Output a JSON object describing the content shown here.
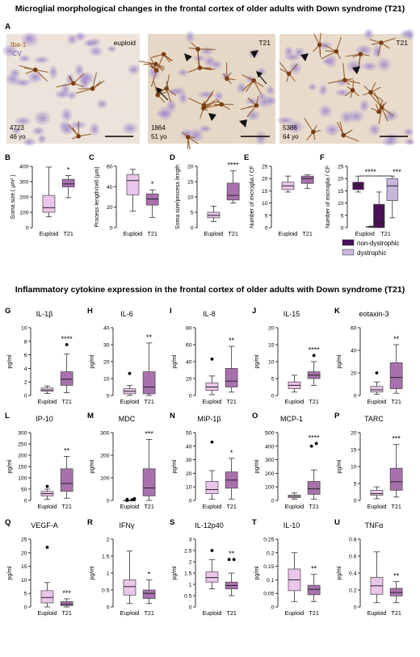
{
  "figure": {
    "title_top": "Microglial morphological changes in the frontal cortex of older adults with Down syndrome (T21)",
    "title_mid": "Inflammatory cytokine expression in the frontal cortex of older adults with Down syndrome (T21)",
    "legend": [
      {
        "label": "non-dystrophic",
        "color": "#4a1057"
      },
      {
        "label": "dystrophic",
        "color": "#c8b6dd"
      }
    ],
    "micrographs": {
      "panel": "A",
      "stain1": "Iba-1",
      "stain2": "CV",
      "images": [
        {
          "tag": "euploid",
          "case": "4723",
          "age": "46 yo"
        },
        {
          "tag": "T21",
          "case": "1864",
          "age": "51 yo"
        },
        {
          "tag": "T21",
          "case": "5386",
          "age": "64 yo"
        }
      ]
    }
  },
  "colors": {
    "euploid": "#ecc6ea",
    "t21": "#a871ad",
    "dark": "#4a1057",
    "light": "#c8b6dd"
  },
  "chart_data": [
    {
      "panel": "B",
      "type": "box",
      "ylabel": "Soma size ( µm² )",
      "categories": [
        "Euploid",
        "T21"
      ],
      "ylim": [
        0,
        400
      ],
      "yticks": [
        0,
        100,
        200,
        300,
        400
      ],
      "significance": "*",
      "boxes": [
        {
          "min": 70,
          "q1": 100,
          "median": 130,
          "q3": 210,
          "max": 395
        },
        {
          "min": 195,
          "q1": 265,
          "median": 285,
          "q3": 315,
          "max": 340
        }
      ]
    },
    {
      "panel": "C",
      "type": "box",
      "ylabel": "Process length/cell (µm)",
      "categories": [
        "Euploid",
        "T21"
      ],
      "ylim": [
        0,
        60
      ],
      "yticks": [
        0,
        20,
        40,
        60
      ],
      "significance": "*",
      "boxes": [
        {
          "min": 16,
          "q1": 32,
          "median": 46,
          "q3": 52,
          "max": 57
        },
        {
          "min": 10,
          "q1": 22,
          "median": 28,
          "q3": 33,
          "max": 37
        }
      ]
    },
    {
      "panel": "D",
      "type": "box",
      "ylabel": "Soma size/process length",
      "categories": [
        "Euploid",
        "T21"
      ],
      "ylim": [
        0,
        20
      ],
      "yticks": [
        0,
        5,
        10,
        15,
        20
      ],
      "significance": "****",
      "boxes": [
        {
          "min": 2,
          "q1": 3.2,
          "median": 4,
          "q3": 5,
          "max": 7
        },
        {
          "min": 8,
          "q1": 9,
          "median": 10.5,
          "q3": 14.5,
          "max": 18.5
        }
      ]
    },
    {
      "panel": "E",
      "type": "box",
      "ylabel": "Number of microglia / CF",
      "categories": [
        "Euploid",
        "T21"
      ],
      "ylim": [
        0,
        25
      ],
      "yticks": [
        0,
        5,
        10,
        15,
        20,
        25
      ],
      "significance": "",
      "boxes": [
        {
          "min": 14.5,
          "q1": 15.5,
          "median": 17,
          "q3": 18.5,
          "max": 21
        },
        {
          "min": 16,
          "q1": 18,
          "median": 20,
          "q3": 21,
          "max": 21.5
        }
      ]
    },
    {
      "panel": "F",
      "type": "box",
      "ylabel": "Number of microglia / CF",
      "categories": [
        "Euploid",
        "T21"
      ],
      "ylim": [
        0,
        25
      ],
      "yticks": [
        0,
        5,
        10,
        15,
        20,
        25
      ],
      "significance": [
        "****",
        "***"
      ],
      "boxes": [
        {
          "min": 14.5,
          "q1": 15.5,
          "median": 17.5,
          "q3": 18.5,
          "max": 21,
          "group": 0,
          "fill": "dark"
        },
        {
          "min": 0.1,
          "q1": 0.2,
          "median": 0.3,
          "q3": 0.4,
          "max": 0.6,
          "group": 0,
          "fill": "light"
        },
        {
          "min": 0,
          "q1": 0,
          "median": 2,
          "q3": 9.5,
          "max": 14.5,
          "group": 1,
          "fill": "dark"
        },
        {
          "min": 4,
          "q1": 11,
          "median": 17,
          "q3": 20,
          "max": 21,
          "group": 1,
          "fill": "light"
        }
      ]
    },
    {
      "panel": "G",
      "type": "box",
      "title": "IL-1β",
      "ylabel": "pg/ml",
      "categories": [
        "Euploid",
        "T21"
      ],
      "ylim": [
        0,
        10
      ],
      "yticks": [
        0,
        2,
        4,
        6,
        8,
        10
      ],
      "significance": "****",
      "boxes": [
        {
          "min": 0.3,
          "q1": 0.6,
          "median": 0.8,
          "q3": 1.1,
          "max": 1.4,
          "outliers": []
        },
        {
          "min": 0.4,
          "q1": 1.5,
          "median": 2.4,
          "q3": 3.5,
          "max": 6.1,
          "outliers": [
            7.5
          ]
        }
      ]
    },
    {
      "panel": "H",
      "type": "box",
      "title": "IL-6",
      "ylabel": "pg/ml",
      "categories": [
        "Euploid",
        "T21"
      ],
      "ylim": [
        0,
        40
      ],
      "yticks": [
        0,
        10,
        20,
        30,
        40
      ],
      "significance": "**",
      "boxes": [
        {
          "min": 0,
          "q1": 1,
          "median": 2.5,
          "q3": 4,
          "max": 6,
          "outliers": [
            13
          ]
        },
        {
          "min": 0,
          "q1": 1,
          "median": 5,
          "q3": 14,
          "max": 31,
          "outliers": []
        }
      ]
    },
    {
      "panel": "I",
      "type": "box",
      "title": "IL-8",
      "ylabel": "pg/ml",
      "categories": [
        "Euploid",
        "T21"
      ],
      "ylim": [
        0,
        80
      ],
      "yticks": [
        0,
        20,
        40,
        60,
        80
      ],
      "significance": "**",
      "boxes": [
        {
          "min": 1,
          "q1": 6,
          "median": 10,
          "q3": 15,
          "max": 23,
          "outliers": [
            43
          ]
        },
        {
          "min": 4,
          "q1": 10,
          "median": 17,
          "q3": 32,
          "max": 58,
          "outliers": []
        }
      ]
    },
    {
      "panel": "J",
      "type": "box",
      "title": "IL-15",
      "ylabel": "pg/ml",
      "categories": [
        "Euploid",
        "T21"
      ],
      "ylim": [
        0,
        20
      ],
      "yticks": [
        0,
        5,
        10,
        15,
        20
      ],
      "significance": "****",
      "boxes": [
        {
          "min": 1,
          "q1": 2,
          "median": 3,
          "q3": 4,
          "max": 6,
          "outliers": []
        },
        {
          "min": 3,
          "q1": 5,
          "median": 6,
          "q3": 7,
          "max": 10,
          "outliers": [
            11.8
          ]
        }
      ]
    },
    {
      "panel": "K",
      "type": "box",
      "title": "eotaxin-3",
      "ylabel": "pg/ml",
      "categories": [
        "Euploid",
        "T21"
      ],
      "ylim": [
        0,
        60
      ],
      "yticks": [
        0,
        20,
        40,
        60
      ],
      "significance": "**",
      "boxes": [
        {
          "min": 1,
          "q1": 3,
          "median": 5,
          "q3": 8,
          "max": 12,
          "outliers": [
            20
          ]
        },
        {
          "min": 2,
          "q1": 6,
          "median": 16,
          "q3": 29,
          "max": 45,
          "outliers": []
        }
      ]
    },
    {
      "panel": "L",
      "type": "box",
      "title": "IP-10",
      "ylabel": "pg/ml",
      "categories": [
        "Euploid",
        "T21"
      ],
      "ylim": [
        0,
        300
      ],
      "yticks": [
        0,
        50,
        100,
        150,
        200,
        250,
        300
      ],
      "significance": "**",
      "boxes": [
        {
          "min": 5,
          "q1": 20,
          "median": 30,
          "q3": 40,
          "max": 50,
          "outliers": [
            62
          ]
        },
        {
          "min": 10,
          "q1": 40,
          "median": 75,
          "q3": 140,
          "max": 195,
          "outliers": []
        }
      ]
    },
    {
      "panel": "M",
      "type": "box",
      "title": "MDC",
      "ylabel": "pg/ml",
      "categories": [
        "Euploid",
        "T21"
      ],
      "ylim": [
        0,
        300
      ],
      "yticks": [
        0,
        100,
        200,
        300
      ],
      "significance": "***",
      "boxes": [
        {
          "min": 0,
          "q1": 0,
          "median": 0,
          "q3": 0,
          "max": 0,
          "outliers": [
            0,
            3,
            5,
            8
          ]
        },
        {
          "min": 0,
          "q1": 20,
          "median": 55,
          "q3": 140,
          "max": 270,
          "outliers": []
        }
      ]
    },
    {
      "panel": "N",
      "type": "box",
      "title": "MIP-1β",
      "ylabel": "pg/ml",
      "categories": [
        "Euploid",
        "T21"
      ],
      "ylim": [
        0,
        50
      ],
      "yticks": [
        0,
        10,
        20,
        30,
        40,
        50
      ],
      "significance": "*",
      "boxes": [
        {
          "min": 1,
          "q1": 5,
          "median": 8,
          "q3": 14,
          "max": 22,
          "outliers": [
            43
          ]
        },
        {
          "min": 1,
          "q1": 9,
          "median": 15,
          "q3": 21,
          "max": 31,
          "outliers": []
        }
      ]
    },
    {
      "panel": "O",
      "type": "box",
      "title": "MCP-1",
      "ylabel": "pg/ml",
      "categories": [
        "Euploid",
        "T21"
      ],
      "ylim": [
        0,
        500
      ],
      "yticks": [
        0,
        100,
        200,
        300,
        400,
        500
      ],
      "significance": "****",
      "boxes": [
        {
          "min": 10,
          "q1": 20,
          "median": 30,
          "q3": 40,
          "max": 55,
          "outliers": []
        },
        {
          "min": 10,
          "q1": 45,
          "median": 85,
          "q3": 140,
          "max": 225,
          "outliers": [
            400,
            420
          ]
        }
      ]
    },
    {
      "panel": "P",
      "type": "box",
      "title": "TARC",
      "ylabel": "pg/ml",
      "categories": [
        "Euploid",
        "T21"
      ],
      "ylim": [
        0,
        20
      ],
      "yticks": [
        0,
        5,
        10,
        15,
        20
      ],
      "significance": "***",
      "boxes": [
        {
          "min": 0.5,
          "q1": 1.5,
          "median": 2,
          "q3": 3,
          "max": 4,
          "outliers": []
        },
        {
          "min": 1,
          "q1": 3,
          "median": 5.5,
          "q3": 9.5,
          "max": 16.5,
          "outliers": []
        }
      ]
    },
    {
      "panel": "Q",
      "type": "box",
      "title": "VEGF-A",
      "ylabel": "pg/ml",
      "categories": [
        "Euploid",
        "T21"
      ],
      "ylim": [
        0,
        25
      ],
      "yticks": [
        0,
        5,
        10,
        15,
        20,
        25
      ],
      "significance": "***",
      "boxes": [
        {
          "min": 0,
          "q1": 1.5,
          "median": 3.5,
          "q3": 6,
          "max": 9,
          "outliers": [
            22
          ]
        },
        {
          "min": 0,
          "q1": 0.5,
          "median": 1,
          "q3": 2,
          "max": 3,
          "outliers": []
        }
      ]
    },
    {
      "panel": "R",
      "type": "box",
      "title": "IFNγ",
      "ylabel": "pg/ml",
      "categories": [
        "Euploid",
        "T21"
      ],
      "ylim": [
        0,
        2
      ],
      "yticks": [
        0,
        0.5,
        1,
        1.5,
        2
      ],
      "significance": "*",
      "boxes": [
        {
          "min": 0.1,
          "q1": 0.35,
          "median": 0.6,
          "q3": 0.8,
          "max": 1.65,
          "outliers": []
        },
        {
          "min": 0.1,
          "q1": 0.25,
          "median": 0.4,
          "q3": 0.5,
          "max": 0.8,
          "outliers": []
        }
      ]
    },
    {
      "panel": "S",
      "type": "box",
      "title": "IL-12p40",
      "ylabel": "pg/ml",
      "categories": [
        "Euploid",
        "T21"
      ],
      "ylim": [
        0,
        3
      ],
      "yticks": [
        0,
        0.5,
        1,
        1.5,
        2,
        2.5,
        3
      ],
      "significance": "**",
      "boxes": [
        {
          "min": 0.8,
          "q1": 1.1,
          "median": 1.3,
          "q3": 1.55,
          "max": 2.1,
          "outliers": [
            2.5
          ]
        },
        {
          "min": 0.5,
          "q1": 0.8,
          "median": 0.95,
          "q3": 1.1,
          "max": 1.5,
          "outliers": [
            2.1,
            2.1
          ]
        }
      ]
    },
    {
      "panel": "T",
      "type": "box",
      "title": "IL-10",
      "ylabel": "pg/ml",
      "categories": [
        "Euploid",
        "T21"
      ],
      "ylim": [
        0,
        0.25
      ],
      "yticks": [
        0,
        0.05,
        0.1,
        0.15,
        0.2,
        0.25
      ],
      "significance": "**",
      "boxes": [
        {
          "min": 0.02,
          "q1": 0.06,
          "median": 0.1,
          "q3": 0.14,
          "max": 0.2,
          "outliers": []
        },
        {
          "min": 0.02,
          "q1": 0.045,
          "median": 0.065,
          "q3": 0.08,
          "max": 0.12,
          "outliers": []
        }
      ]
    },
    {
      "panel": "U",
      "type": "box",
      "title": "TNFα",
      "ylabel": "pg/ml",
      "categories": [
        "Euploid",
        "T21"
      ],
      "ylim": [
        0,
        0.8
      ],
      "yticks": [
        0,
        0.2,
        0.4,
        0.6,
        0.8
      ],
      "significance": "**",
      "boxes": [
        {
          "min": 0.05,
          "q1": 0.15,
          "median": 0.25,
          "q3": 0.35,
          "max": 0.65,
          "outliers": []
        },
        {
          "min": 0.05,
          "q1": 0.13,
          "median": 0.17,
          "q3": 0.22,
          "max": 0.3,
          "outliers": []
        }
      ]
    }
  ]
}
